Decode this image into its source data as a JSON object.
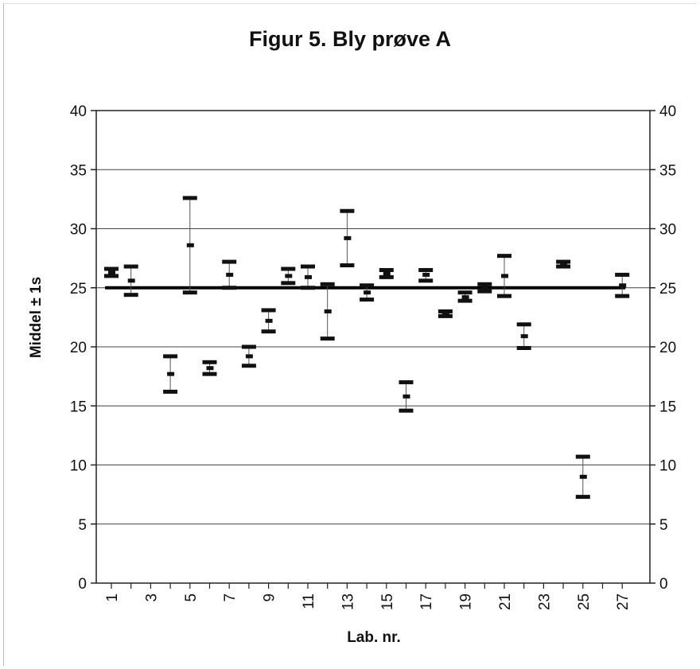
{
  "chart_data": {
    "type": "scatter",
    "title": "Figur 5. Bly prøve A",
    "xlabel": "Lab. nr.",
    "ylabel": "Middel ± 1s",
    "ylim": [
      0,
      40
    ],
    "yticks": [
      0,
      5,
      10,
      15,
      20,
      25,
      30,
      35,
      40
    ],
    "xlim": [
      1,
      27
    ],
    "xticks": [
      1,
      3,
      5,
      7,
      9,
      11,
      13,
      15,
      17,
      19,
      21,
      23,
      25,
      27
    ],
    "grid": "horizontal",
    "legend": "none",
    "reference_line": {
      "value": 25,
      "color": "#000000"
    },
    "series": [
      {
        "values": [
          {
            "lab": 1,
            "mean": 26.3,
            "low": 26.0,
            "high": 26.6
          },
          {
            "lab": 2,
            "mean": 25.6,
            "low": 24.4,
            "high": 26.8
          },
          {
            "lab": 4,
            "mean": 17.7,
            "low": 16.2,
            "high": 19.2
          },
          {
            "lab": 5,
            "mean": 28.6,
            "low": 24.6,
            "high": 32.6
          },
          {
            "lab": 6,
            "mean": 18.2,
            "low": 17.7,
            "high": 18.7
          },
          {
            "lab": 7,
            "mean": 26.1,
            "low": 25.0,
            "high": 27.2
          },
          {
            "lab": 8,
            "mean": 19.2,
            "low": 18.4,
            "high": 20.0
          },
          {
            "lab": 9,
            "mean": 22.2,
            "low": 21.3,
            "high": 23.1
          },
          {
            "lab": 10,
            "mean": 26.0,
            "low": 25.4,
            "high": 26.6
          },
          {
            "lab": 11,
            "mean": 25.9,
            "low": 25.0,
            "high": 26.8
          },
          {
            "lab": 12,
            "mean": 23.0,
            "low": 20.7,
            "high": 25.3
          },
          {
            "lab": 13,
            "mean": 29.2,
            "low": 26.9,
            "high": 31.5
          },
          {
            "lab": 14,
            "mean": 24.6,
            "low": 24.0,
            "high": 25.2
          },
          {
            "lab": 15,
            "mean": 26.2,
            "low": 25.9,
            "high": 26.5
          },
          {
            "lab": 16,
            "mean": 15.8,
            "low": 14.6,
            "high": 17.0
          },
          {
            "lab": 17,
            "mean": 26.1,
            "low": 25.6,
            "high": 26.5
          },
          {
            "lab": 18,
            "mean": 22.8,
            "low": 22.6,
            "high": 23.0
          },
          {
            "lab": 19,
            "mean": 24.2,
            "low": 23.9,
            "high": 24.6
          },
          {
            "lab": 20,
            "mean": 25.0,
            "low": 24.7,
            "high": 25.3
          },
          {
            "lab": 21,
            "mean": 26.0,
            "low": 24.3,
            "high": 27.7
          },
          {
            "lab": 22,
            "mean": 20.9,
            "low": 19.9,
            "high": 21.9
          },
          {
            "lab": 24,
            "mean": 27.0,
            "low": 26.8,
            "high": 27.2
          },
          {
            "lab": 25,
            "mean": 9.0,
            "low": 7.3,
            "high": 10.7
          },
          {
            "lab": 27,
            "mean": 25.2,
            "low": 24.3,
            "high": 26.1
          }
        ]
      }
    ]
  }
}
